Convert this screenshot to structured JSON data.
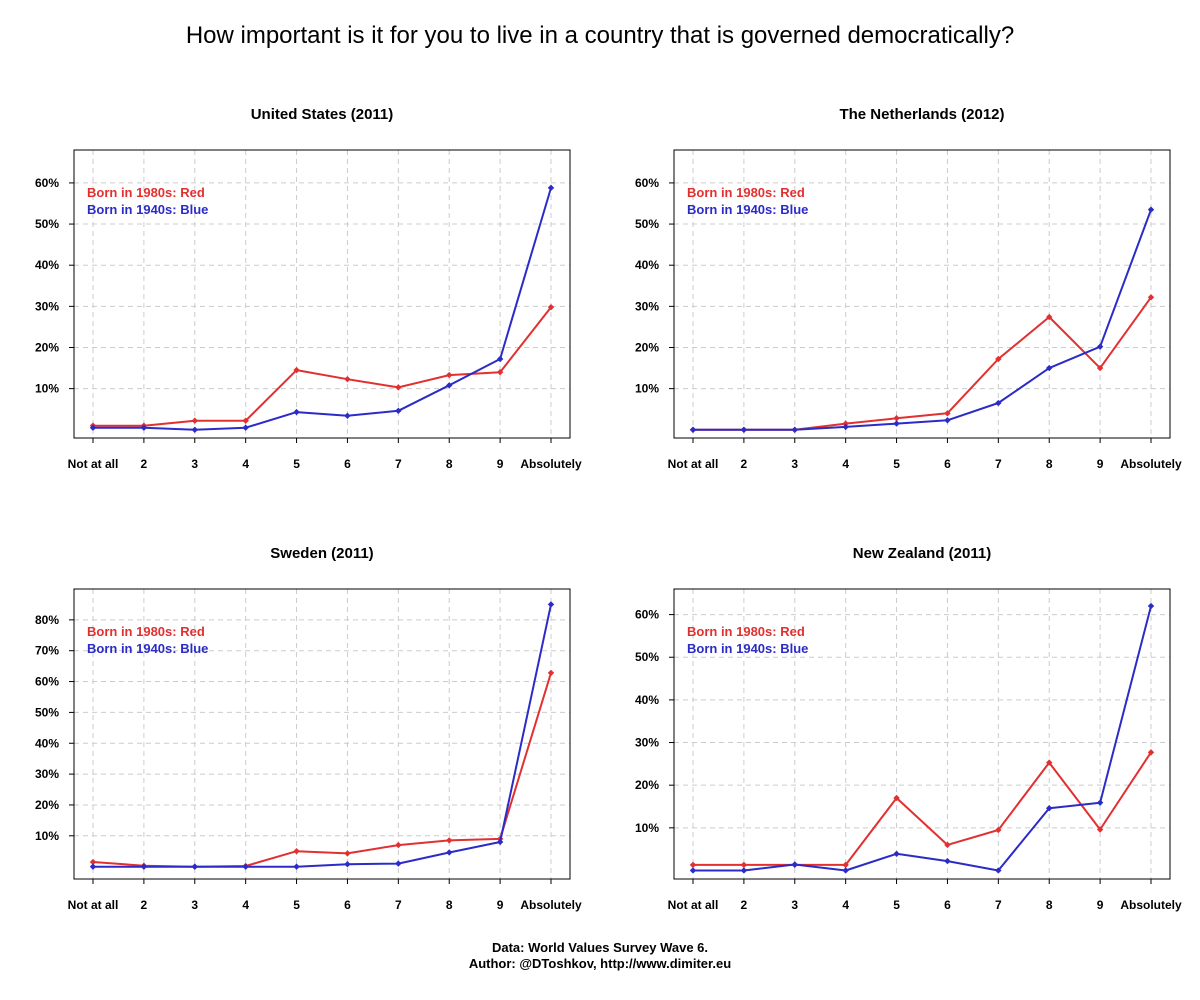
{
  "title": "How important is it for you to live in a country that is governed democratically?",
  "footer": {
    "line1": "Data: World Values Survey Wave 6.",
    "line2": "Author: @DToshkov, http://www.dimiter.eu"
  },
  "colors": {
    "red": "#e23030",
    "blue": "#2b2bc8",
    "grid": "#cccccc",
    "axis": "#000000"
  },
  "chart_data": [
    {
      "type": "line",
      "title": "United States (2011)",
      "categories": [
        "Not at all",
        "2",
        "3",
        "4",
        "5",
        "6",
        "7",
        "8",
        "9",
        "Absolutely"
      ],
      "yticks": [
        10,
        20,
        30,
        40,
        50,
        60
      ],
      "ytick_labels": [
        "10%",
        "20%",
        "30%",
        "40%",
        "50%",
        "60%"
      ],
      "ylim": [
        -2,
        68
      ],
      "legend": [
        "Born in 1980s: Red",
        "Born in 1940s: Blue"
      ],
      "series": [
        {
          "name": "Born in 1980s",
          "color": "red",
          "values": [
            1,
            1,
            2.2,
            2.2,
            14.5,
            12.3,
            10.3,
            13.3,
            14,
            29.8
          ]
        },
        {
          "name": "Born in 1940s",
          "color": "blue",
          "values": [
            0.5,
            0.5,
            0,
            0.5,
            4.3,
            3.4,
            4.6,
            10.8,
            17.2,
            58.8
          ]
        }
      ]
    },
    {
      "type": "line",
      "title": "The Netherlands (2012)",
      "categories": [
        "Not at all",
        "2",
        "3",
        "4",
        "5",
        "6",
        "7",
        "8",
        "9",
        "Absolutely"
      ],
      "yticks": [
        10,
        20,
        30,
        40,
        50,
        60
      ],
      "ytick_labels": [
        "10%",
        "20%",
        "30%",
        "40%",
        "50%",
        "60%"
      ],
      "ylim": [
        -2,
        68
      ],
      "legend": [
        "Born in 1980s: Red",
        "Born in 1940s: Blue"
      ],
      "series": [
        {
          "name": "Born in 1980s",
          "color": "red",
          "values": [
            0,
            0,
            0,
            1.5,
            2.8,
            4,
            17.2,
            27.4,
            15,
            32.2
          ]
        },
        {
          "name": "Born in 1940s",
          "color": "blue",
          "values": [
            0,
            0,
            0,
            0.7,
            1.5,
            2.3,
            6.5,
            15,
            20.2,
            53.5
          ]
        }
      ]
    },
    {
      "type": "line",
      "title": "Sweden (2011)",
      "categories": [
        "Not at all",
        "2",
        "3",
        "4",
        "5",
        "6",
        "7",
        "8",
        "9",
        "Absolutely"
      ],
      "yticks": [
        10,
        20,
        30,
        40,
        50,
        60,
        70,
        80
      ],
      "ytick_labels": [
        "10%",
        "20%",
        "30%",
        "40%",
        "50%",
        "60%",
        "70%",
        "80%"
      ],
      "ylim": [
        -4,
        90
      ],
      "legend": [
        "Born in 1980s: Red",
        "Born in 1940s: Blue"
      ],
      "series": [
        {
          "name": "Born in 1980s",
          "color": "red",
          "values": [
            1.5,
            0.3,
            0,
            0.2,
            5,
            4.3,
            7,
            8.5,
            9,
            62.8
          ]
        },
        {
          "name": "Born in 1940s",
          "color": "blue",
          "values": [
            0,
            0,
            0,
            0,
            0,
            0.8,
            1,
            4.6,
            8,
            85
          ]
        }
      ]
    },
    {
      "type": "line",
      "title": "New Zealand (2011)",
      "categories": [
        "Not at all",
        "2",
        "3",
        "4",
        "5",
        "6",
        "7",
        "8",
        "9",
        "Absolutely"
      ],
      "yticks": [
        10,
        20,
        30,
        40,
        50,
        60
      ],
      "ytick_labels": [
        "10%",
        "20%",
        "30%",
        "40%",
        "50%",
        "60%"
      ],
      "ylim": [
        -2,
        66
      ],
      "legend": [
        "Born in 1980s: Red",
        "Born in 1940s: Blue"
      ],
      "series": [
        {
          "name": "Born in 1980s",
          "color": "red",
          "values": [
            1.3,
            1.3,
            1.3,
            1.3,
            17,
            6,
            9.5,
            25.3,
            9.6,
            27.7
          ]
        },
        {
          "name": "Born in 1940s",
          "color": "blue",
          "values": [
            0,
            0,
            1.4,
            0,
            3.9,
            2.2,
            0,
            14.6,
            15.9,
            62
          ]
        }
      ]
    }
  ]
}
